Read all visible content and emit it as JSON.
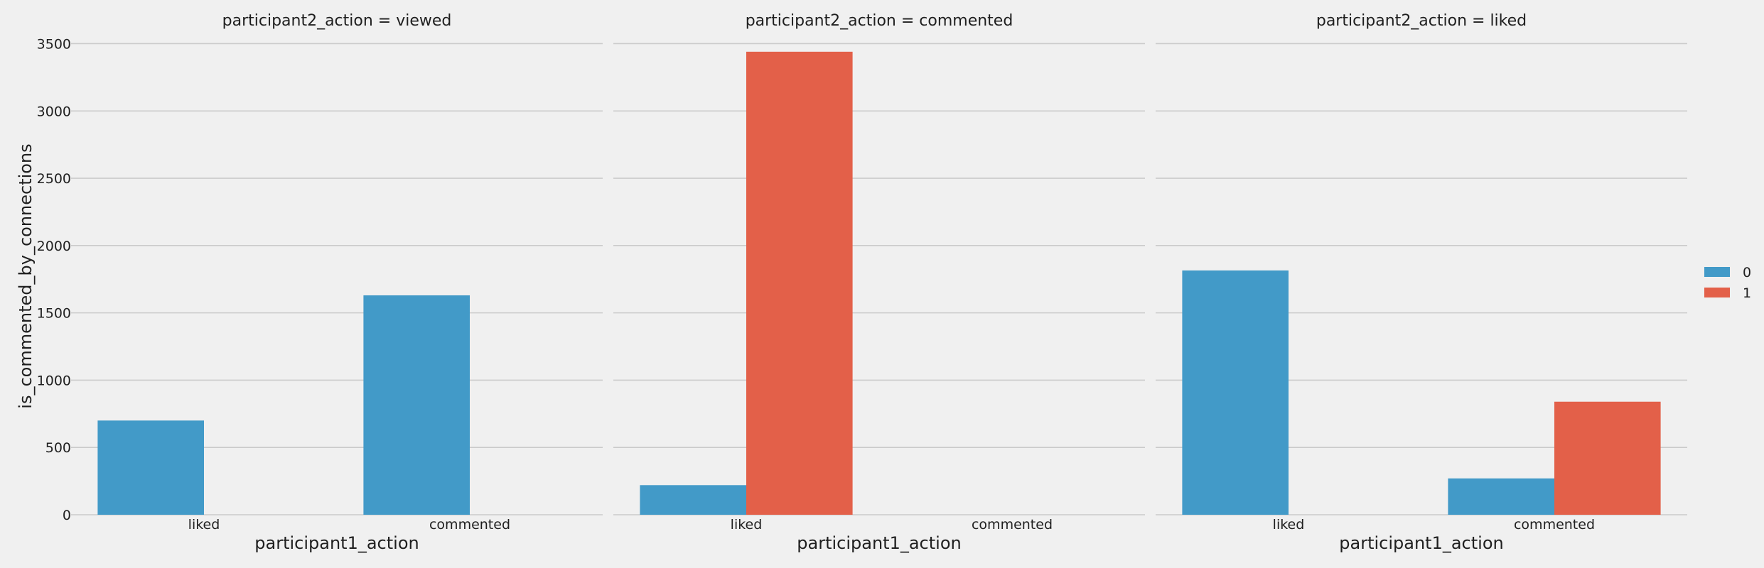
{
  "chart_data": {
    "type": "bar",
    "facet_variable": "participant2_action",
    "categories": [
      "liked",
      "commented"
    ],
    "xlabel": "participant1_action",
    "ylabel": "is_commented_by_connections",
    "ylim": [
      0,
      3550
    ],
    "yticks": [
      0,
      500,
      1000,
      1500,
      2000,
      2500,
      3000,
      3500
    ],
    "grid": true,
    "legend": {
      "placement": "right",
      "entries": [
        {
          "label": "0",
          "color": "#429ac8"
        },
        {
          "label": "1",
          "color": "#e36049"
        }
      ]
    },
    "panels": [
      {
        "title": "participant2_action = viewed",
        "series": [
          {
            "name": "0",
            "values": [
              700,
              1630
            ]
          },
          {
            "name": "1",
            "values": [
              null,
              null
            ]
          }
        ]
      },
      {
        "title": "participant2_action = commented",
        "series": [
          {
            "name": "0",
            "values": [
              220,
              null
            ]
          },
          {
            "name": "1",
            "values": [
              3440,
              null
            ]
          }
        ]
      },
      {
        "title": "participant2_action = liked",
        "series": [
          {
            "name": "0",
            "values": [
              1815,
              270
            ]
          },
          {
            "name": "1",
            "values": [
              null,
              840
            ]
          }
        ]
      }
    ]
  }
}
